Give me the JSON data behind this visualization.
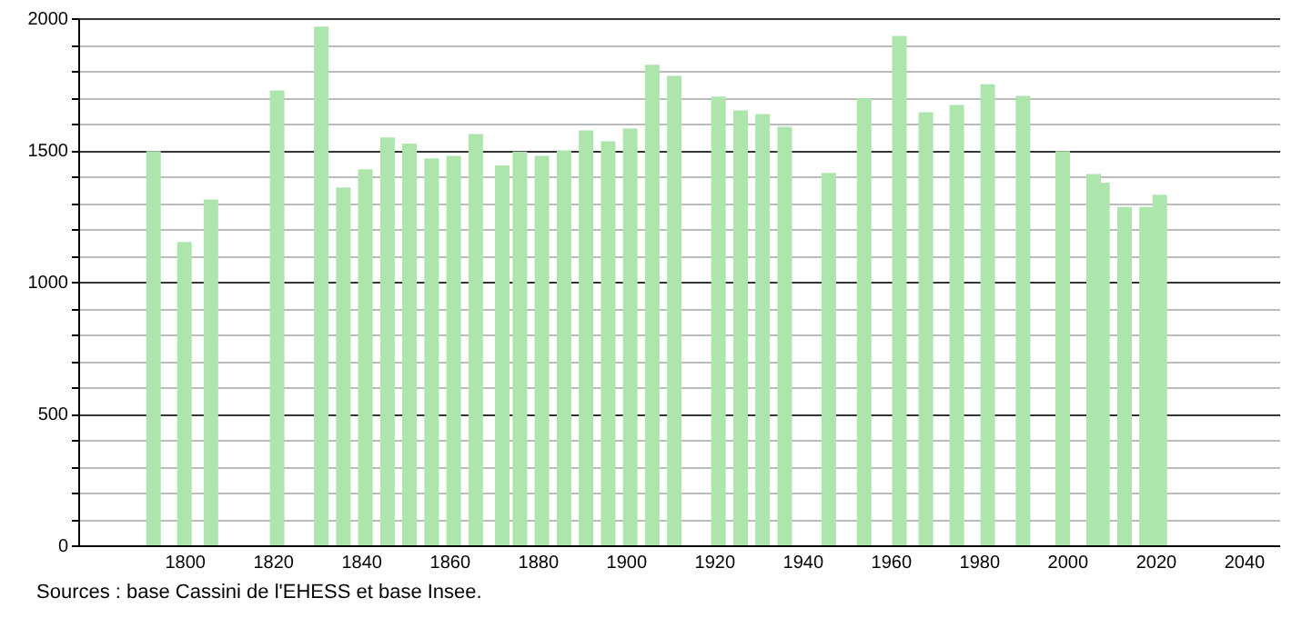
{
  "chart_data": {
    "type": "bar",
    "x": [
      1793,
      1800,
      1806,
      1821,
      1831,
      1836,
      1841,
      1846,
      1851,
      1856,
      1861,
      1866,
      1872,
      1876,
      1881,
      1886,
      1891,
      1896,
      1901,
      1906,
      1911,
      1921,
      1926,
      1931,
      1936,
      1946,
      1954,
      1962,
      1968,
      1975,
      1982,
      1990,
      1999,
      2006,
      2008,
      2013,
      2018,
      2021
    ],
    "values": [
      1496,
      1151,
      1312,
      1726,
      1968,
      1358,
      1427,
      1547,
      1524,
      1468,
      1478,
      1560,
      1441,
      1494,
      1478,
      1498,
      1574,
      1533,
      1581,
      1823,
      1781,
      1703,
      1650,
      1636,
      1588,
      1413,
      1696,
      1933,
      1643,
      1671,
      1749,
      1705,
      1496,
      1409,
      1376,
      1284,
      1284,
      1330
    ],
    "color": "#ade5ad",
    "xlim": [
      1778,
      2046
    ],
    "xticks": [
      1800,
      1820,
      1840,
      1860,
      1880,
      1900,
      1920,
      1940,
      1960,
      1980,
      2000,
      2020,
      2040
    ],
    "ylim": [
      0,
      2000
    ],
    "yticks": [
      0,
      {
        "value": 100,
        "label": null
      },
      {
        "value": 200,
        "label": null
      },
      {
        "value": 300,
        "label": null
      },
      {
        "value": 400,
        "label": null
      },
      500,
      {
        "value": 600,
        "label": null
      },
      {
        "value": 700,
        "label": null
      },
      {
        "value": 800,
        "label": null
      },
      {
        "value": 900,
        "label": null
      },
      1000,
      {
        "value": 1100,
        "label": null
      },
      {
        "value": 1200,
        "label": null
      },
      {
        "value": 1300,
        "label": null
      },
      {
        "value": 1400,
        "label": null
      },
      1500,
      {
        "value": 1600,
        "label": null
      },
      {
        "value": 1700,
        "label": null
      },
      {
        "value": 1800,
        "label": null
      },
      {
        "value": 1900,
        "label": null
      },
      2000
    ],
    "grid": true,
    "annotations": [
      "Sources : base Cassini de l'EHESS et base Insee."
    ]
  }
}
